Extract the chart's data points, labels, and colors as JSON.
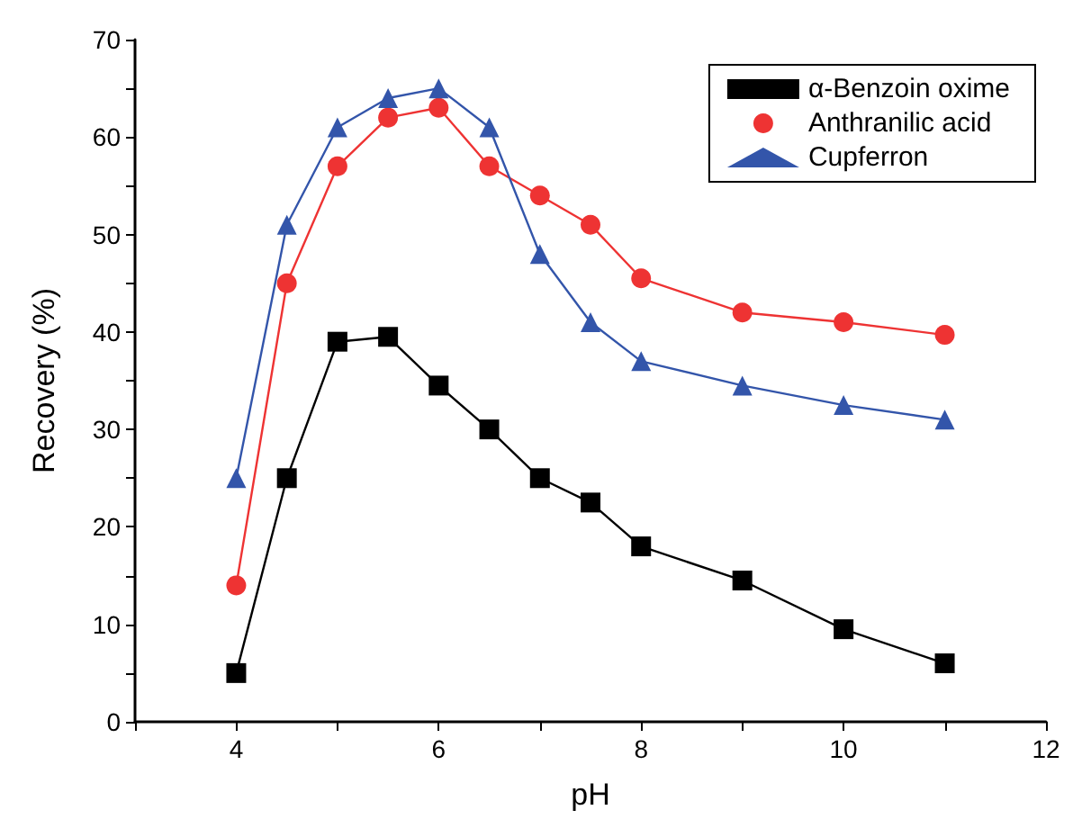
{
  "chart_data": {
    "type": "line",
    "xlabel": "pH",
    "ylabel": "Recovery (%)",
    "x": [
      4,
      4.5,
      5,
      5.5,
      6,
      6.5,
      7,
      7.5,
      8,
      9,
      10,
      11
    ],
    "series": [
      {
        "name": "α-Benzoin oxime",
        "color": "#000000",
        "marker": "square",
        "values": [
          5,
          25,
          39,
          39.5,
          34.5,
          30,
          25,
          22.5,
          18,
          14.5,
          9.5,
          6
        ]
      },
      {
        "name": "Anthranilic acid",
        "color": "#ee3333",
        "marker": "circle",
        "values": [
          14,
          45,
          57,
          62,
          63,
          57,
          54,
          51,
          45.5,
          42,
          41,
          39.7
        ]
      },
      {
        "name": "Cupferron",
        "color": "#3355aa",
        "marker": "triangle",
        "values": [
          25,
          51,
          61,
          64,
          65,
          61,
          48,
          41,
          37,
          34.5,
          32.5,
          31
        ]
      }
    ],
    "xlim": [
      3,
      12
    ],
    "xticks": [
      {
        "value": 3,
        "label": null
      },
      4,
      {
        "value": 5,
        "label": null
      },
      6,
      {
        "value": 7,
        "label": null
      },
      8,
      {
        "value": 9,
        "label": null
      },
      10,
      {
        "value": 11,
        "label": null
      },
      12
    ],
    "ylim": [
      0,
      70
    ],
    "yticks": [
      0,
      {
        "value": 5,
        "label": null
      },
      10,
      {
        "value": 15,
        "label": null
      },
      20,
      {
        "value": 25,
        "label": null
      },
      30,
      {
        "value": 35,
        "label": null
      },
      40,
      {
        "value": 45,
        "label": null
      },
      50,
      {
        "value": 55,
        "label": null
      },
      60,
      {
        "value": 65,
        "label": null
      },
      70
    ],
    "grid": false,
    "legend": "top right",
    "line_style": "solid"
  }
}
